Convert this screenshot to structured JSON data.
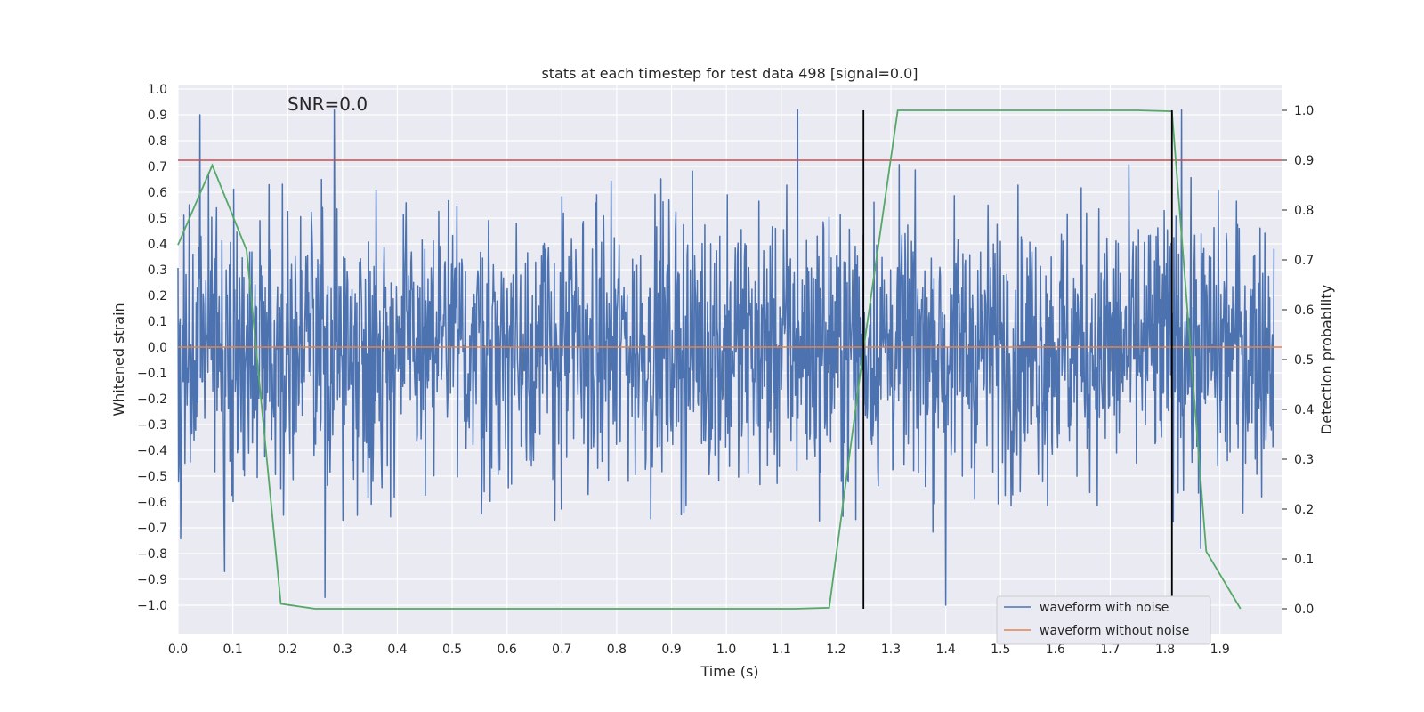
{
  "chart_data": {
    "type": "line",
    "title": "stats at each timestep for test data 498 [signal=0.0]",
    "annotation": "SNR=0.0",
    "xlabel": "Time (s)",
    "ylabel": "Whitened strain",
    "y2label": "Detection probability",
    "xlim": [
      0.0,
      2.0
    ],
    "ylim": [
      -1.1,
      1.02
    ],
    "y2lim": [
      -0.05,
      1.04
    ],
    "xticks": [
      "0.0",
      "0.1",
      "0.2",
      "0.3",
      "0.4",
      "0.5",
      "0.6",
      "0.7",
      "0.8",
      "0.9",
      "1.0",
      "1.1",
      "1.2",
      "1.3",
      "1.4",
      "1.5",
      "1.6",
      "1.7",
      "1.8",
      "1.9"
    ],
    "yticks": [
      "1.0",
      "0.9",
      "0.8",
      "0.7",
      "0.6",
      "0.5",
      "0.4",
      "0.3",
      "0.2",
      "0.1",
      "0.0",
      "−0.1",
      "−0.2",
      "−0.3",
      "−0.4",
      "−0.5",
      "−0.6",
      "−0.7",
      "−0.8",
      "−0.9",
      "−1.0"
    ],
    "y2ticks": [
      "1.0",
      "0.9",
      "0.8",
      "0.7",
      "0.6",
      "0.5",
      "0.4",
      "0.3",
      "0.2",
      "0.1",
      "0.0"
    ],
    "grid": true,
    "legend_position": "lower-right",
    "series": [
      {
        "name": "waveform with noise",
        "color": "#4c72b0",
        "axis": "left",
        "style": "dense noise, approx. amplitude range -1.0 to 0.92",
        "peaks": [
          {
            "x": 0.04,
            "y": 0.9
          },
          {
            "x": 0.085,
            "y": -0.87
          },
          {
            "x": 0.285,
            "y": 0.92
          },
          {
            "x": 0.268,
            "y": -0.97
          },
          {
            "x": 1.13,
            "y": 0.92
          },
          {
            "x": 1.4,
            "y": -1.0
          },
          {
            "x": 1.83,
            "y": 0.92
          },
          {
            "x": 1.865,
            "y": -0.78
          }
        ]
      },
      {
        "name": "waveform without noise",
        "color": "#dd8452",
        "axis": "left",
        "x": [
          0.0,
          2.0
        ],
        "y": [
          0.0,
          0.0
        ]
      },
      {
        "color": "#55a868",
        "axis": "right",
        "x": [
          0.0,
          0.0625,
          0.125,
          0.1875,
          0.25,
          0.3125,
          0.375,
          0.4375,
          0.5,
          0.5625,
          0.625,
          0.6875,
          0.75,
          0.8125,
          0.875,
          0.9375,
          1.0,
          1.0625,
          1.125,
          1.1875,
          1.25,
          1.3125,
          1.375,
          1.4375,
          1.5,
          1.5625,
          1.625,
          1.6875,
          1.75,
          1.8125,
          1.875,
          1.9375
        ],
        "y": [
          0.73,
          0.89,
          0.72,
          0.01,
          0.0,
          0.0,
          0.0,
          0.0,
          0.0,
          0.0,
          0.0,
          0.0,
          0.0,
          0.0,
          0.0,
          0.0,
          0.0,
          0.0,
          0.0,
          0.002,
          0.52,
          1.0,
          1.0,
          1.0,
          1.0,
          1.0,
          1.0,
          1.0,
          1.0,
          0.998,
          0.115,
          0.0
        ]
      }
    ],
    "hlines": [
      {
        "axis": "right",
        "y": 0.9,
        "color": "#c44e52"
      }
    ],
    "vlines": [
      {
        "x": 1.25,
        "color": "#000000"
      },
      {
        "x": 1.8125,
        "color": "#000000"
      }
    ]
  }
}
